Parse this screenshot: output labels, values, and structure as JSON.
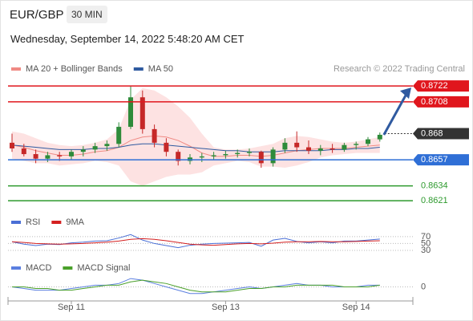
{
  "header": {
    "symbol": "EUR/GBP",
    "interval": "30 MIN",
    "timestamp": "Wednesday, September 14, 2022 5:48:20 AM CET"
  },
  "chart_data": [
    {
      "type": "candlestick",
      "credit": "Research © 2022 Trading Central",
      "categories": [
        null,
        null,
        null,
        null,
        null,
        "Sep 11",
        null,
        null,
        null,
        null,
        null,
        null,
        null,
        null,
        null,
        null,
        null,
        null,
        "Sep 13",
        null,
        null,
        null,
        null,
        null,
        null,
        null,
        null,
        null,
        null,
        "Sep 14",
        null,
        null
      ],
      "ohlc": [
        [
          0.8672,
          0.868,
          0.8664,
          0.8667
        ],
        [
          0.8667,
          0.8671,
          0.866,
          0.8662
        ],
        [
          0.8662,
          0.8666,
          0.8654,
          0.8658
        ],
        [
          0.8658,
          0.8664,
          0.8655,
          0.8661
        ],
        [
          0.8661,
          0.8664,
          0.8656,
          0.866
        ],
        [
          0.866,
          0.8666,
          0.8657,
          0.8664
        ],
        [
          0.8664,
          0.8669,
          0.866,
          0.8666
        ],
        [
          0.8666,
          0.8672,
          0.8663,
          0.8669
        ],
        [
          0.8669,
          0.8674,
          0.8665,
          0.8671
        ],
        [
          0.8671,
          0.869,
          0.8668,
          0.8686
        ],
        [
          0.8686,
          0.8722,
          0.8684,
          0.8712
        ],
        [
          0.8712,
          0.8718,
          0.868,
          0.8684
        ],
        [
          0.8684,
          0.8688,
          0.8668,
          0.8672
        ],
        [
          0.8672,
          0.8676,
          0.866,
          0.8664
        ],
        [
          0.8664,
          0.8666,
          0.8652,
          0.8656
        ],
        [
          0.8656,
          0.8662,
          0.8653,
          0.8659
        ],
        [
          0.8659,
          0.8663,
          0.8655,
          0.866
        ],
        [
          0.866,
          0.8664,
          0.8657,
          0.8661
        ],
        [
          0.8661,
          0.8665,
          0.8658,
          0.8662
        ],
        [
          0.8662,
          0.8666,
          0.8659,
          0.8663
        ],
        [
          0.8663,
          0.8667,
          0.866,
          0.8664
        ],
        [
          0.8664,
          0.8665,
          0.865,
          0.8654
        ],
        [
          0.8654,
          0.8668,
          0.8651,
          0.8666
        ],
        [
          0.8666,
          0.8676,
          0.8663,
          0.8672
        ],
        [
          0.8672,
          0.8682,
          0.8664,
          0.8668
        ],
        [
          0.8668,
          0.8674,
          0.8662,
          0.8665
        ],
        [
          0.8665,
          0.867,
          0.8661,
          0.8667
        ],
        [
          0.8667,
          0.8671,
          0.8663,
          0.8666
        ],
        [
          0.8666,
          0.8672,
          0.8664,
          0.867
        ],
        [
          0.867,
          0.8673,
          0.8666,
          0.8671
        ],
        [
          0.8671,
          0.8677,
          0.8669,
          0.8675
        ],
        [
          0.8675,
          0.8681,
          0.8673,
          0.8679
        ]
      ],
      "up_color": "#2e8b3a",
      "down_color": "#c62828",
      "ylim": [
        0.8614,
        0.8727
      ],
      "series": [
        {
          "name": "MA 20 + Bollinger Bands",
          "color": "#f08a84",
          "band_color": "#fde2e2",
          "values": [
            0.867,
            0.8668,
            0.8665,
            0.8663,
            0.8661,
            0.8661,
            0.8662,
            0.8664,
            0.8665,
            0.8668,
            0.8674,
            0.8677,
            0.8678,
            0.8677,
            0.8674,
            0.8669,
            0.8663,
            0.866,
            0.866,
            0.8661,
            0.8661,
            0.866,
            0.8661,
            0.8663,
            0.8665,
            0.8666,
            0.8667,
            0.8667,
            0.8667,
            0.8668,
            0.8669,
            0.867
          ],
          "upper": [
            0.8682,
            0.868,
            0.8676,
            0.8672,
            0.867,
            0.8669,
            0.867,
            0.8672,
            0.8675,
            0.8684,
            0.871,
            0.872,
            0.8718,
            0.8712,
            0.8704,
            0.8694,
            0.868,
            0.8668,
            0.8666,
            0.8666,
            0.8667,
            0.8669,
            0.8671,
            0.8676,
            0.8678,
            0.8677,
            0.8675,
            0.8673,
            0.8672,
            0.8673,
            0.8675,
            0.8677
          ],
          "lower": [
            0.8658,
            0.8656,
            0.8654,
            0.8654,
            0.8652,
            0.8653,
            0.8654,
            0.8656,
            0.8655,
            0.8652,
            0.8638,
            0.8634,
            0.8638,
            0.8642,
            0.8644,
            0.8644,
            0.8646,
            0.8652,
            0.8654,
            0.8656,
            0.8655,
            0.8651,
            0.8651,
            0.865,
            0.8652,
            0.8655,
            0.8659,
            0.8661,
            0.8662,
            0.8663,
            0.8663,
            0.8663
          ]
        },
        {
          "name": "MA 50",
          "color": "#2f5aa0",
          "values": [
            0.867,
            0.8669,
            0.8668,
            0.8667,
            0.8666,
            0.8666,
            0.8666,
            0.8667,
            0.8667,
            0.8668,
            0.867,
            0.8671,
            0.8671,
            0.867,
            0.8669,
            0.8668,
            0.8667,
            0.8666,
            0.8665,
            0.8665,
            0.8664,
            0.8664,
            0.8664,
            0.8665,
            0.8665,
            0.8665,
            0.8665,
            0.8666,
            0.8666,
            0.8667,
            0.8667,
            0.8668
          ]
        }
      ],
      "levels": [
        {
          "value": 0.8722,
          "color": "#e0161d",
          "line": "solid",
          "label_style": "box"
        },
        {
          "value": 0.8708,
          "color": "#e0161d",
          "line": "solid",
          "label_style": "box"
        },
        {
          "value": 0.868,
          "color": "#333333",
          "line": "dotted",
          "label_style": "box"
        },
        {
          "value": 0.8657,
          "color": "#2f6fd6",
          "line": "solid",
          "label_style": "box"
        },
        {
          "value": 0.8634,
          "color": "#2e9a2e",
          "line": "solid",
          "label_style": "text"
        },
        {
          "value": 0.8621,
          "color": "#2e9a2e",
          "line": "solid",
          "label_style": "text"
        }
      ],
      "arrow_color": "#2f5aa0"
    },
    {
      "type": "line",
      "ylim": [
        16,
        86
      ],
      "yticks": [
        30,
        50,
        70
      ],
      "grid": true,
      "series": [
        {
          "name": "RSI",
          "color": "#4a6fd6",
          "values": [
            55,
            48,
            44,
            48,
            47,
            52,
            54,
            57,
            58,
            66,
            76,
            60,
            50,
            44,
            38,
            45,
            48,
            50,
            51,
            52,
            53,
            42,
            60,
            65,
            56,
            52,
            55,
            52,
            57,
            57,
            60,
            63
          ]
        },
        {
          "name": "9MA",
          "color": "#d42020",
          "values": [
            55,
            53,
            50,
            49,
            48,
            49,
            50,
            52,
            54,
            57,
            62,
            64,
            62,
            58,
            53,
            48,
            46,
            45,
            47,
            49,
            50,
            49,
            51,
            54,
            55,
            55,
            56,
            55,
            55,
            56,
            57,
            58
          ]
        }
      ]
    },
    {
      "type": "line",
      "ylim": [
        -0.0007,
        0.0006
      ],
      "yticks": [
        0
      ],
      "grid": true,
      "series": [
        {
          "name": "MACD",
          "color": "#5b7fe0",
          "values": [
            0.0,
            -0.0001,
            -0.0002,
            -0.0002,
            -0.0002,
            -0.0001,
            0.0,
            0.0001,
            0.0001,
            0.0002,
            0.0005,
            0.0004,
            0.0002,
            0.0,
            -0.0002,
            -0.0004,
            -0.0004,
            -0.0003,
            -0.0002,
            -0.0001,
            0.0,
            -0.0001,
            0.0,
            0.0001,
            0.0002,
            0.0001,
            0.0001,
            0.0,
            0.0,
            0.0,
            0.0001,
            0.0001
          ]
        },
        {
          "name": "MACD Signal",
          "color": "#4aa02a",
          "values": [
            0.0,
            0.0,
            -0.0001,
            -0.0001,
            -0.0002,
            -0.0002,
            -0.0001,
            0.0,
            0.0001,
            0.0001,
            0.0003,
            0.0004,
            0.0003,
            0.0002,
            0.0,
            -0.0002,
            -0.0003,
            -0.0003,
            -0.0003,
            -0.0002,
            -0.0001,
            -0.0001,
            0.0,
            0.0,
            0.0001,
            0.0001,
            0.0001,
            0.0001,
            0.0,
            0.0,
            0.0,
            0.0001
          ]
        }
      ]
    }
  ]
}
